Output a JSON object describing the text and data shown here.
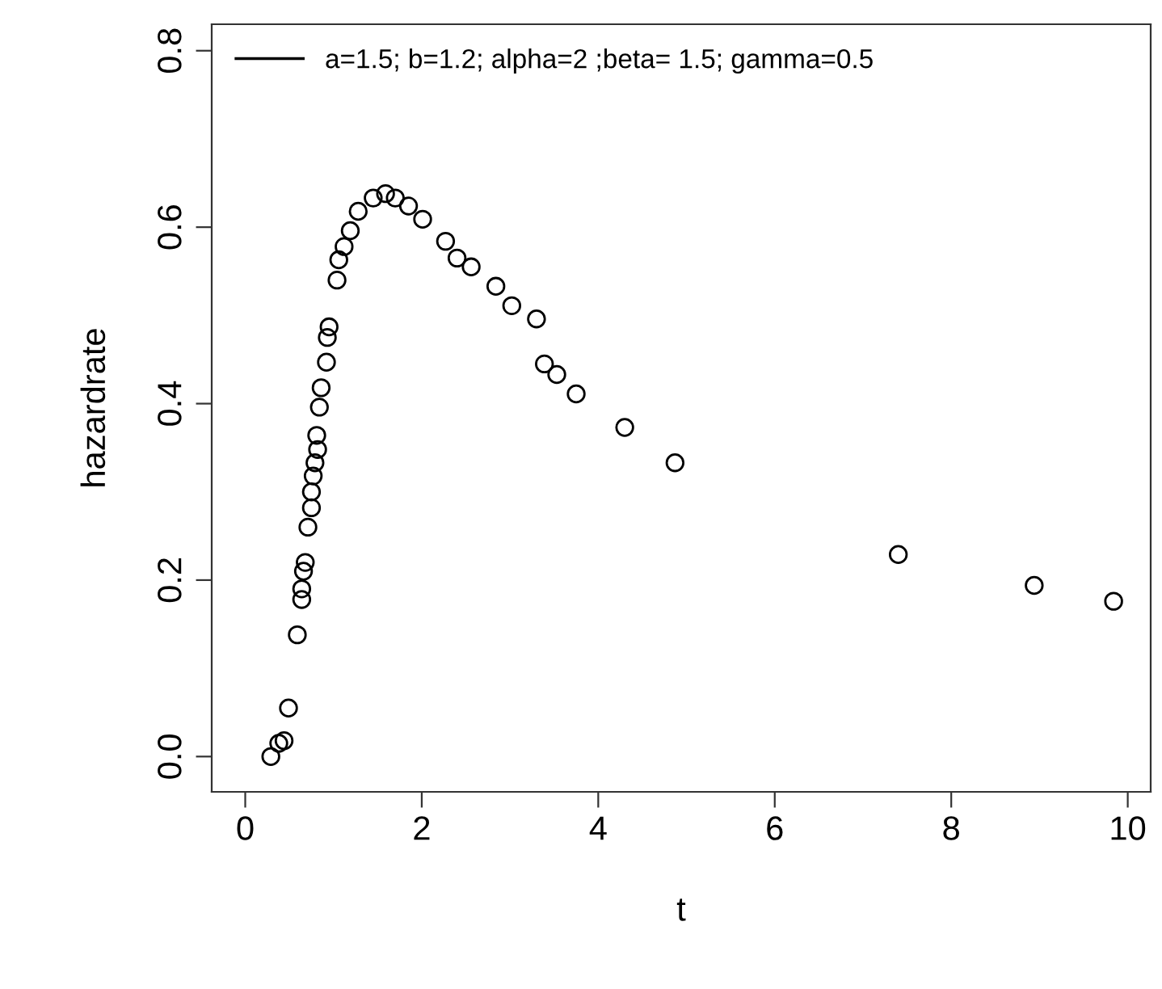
{
  "chart_data": {
    "type": "scatter",
    "xlabel": "t",
    "ylabel": "hazardrate",
    "xlim": [
      -0.38,
      10.26
    ],
    "ylim": [
      -0.04,
      0.83
    ],
    "xticks": [
      0,
      2,
      4,
      6,
      8,
      10
    ],
    "yticks": [
      {
        "value": 0,
        "label": "0.0"
      },
      0.2,
      0.4,
      0.6,
      0.8
    ],
    "marker": "circle",
    "grid": false,
    "legend": "top left",
    "series": [
      {
        "name": "a=1.5; b=1.2; alpha=2 ;beta= 1.5; gamma=0.5",
        "color": "#000000",
        "x": [
          0.29,
          0.38,
          0.44,
          0.49,
          0.59,
          0.64,
          0.64,
          0.66,
          0.68,
          0.71,
          0.75,
          0.75,
          0.77,
          0.79,
          0.82,
          0.81,
          0.84,
          0.86,
          0.92,
          0.93,
          0.95,
          1.04,
          1.06,
          1.12,
          1.19,
          1.28,
          1.45,
          1.59,
          1.7,
          1.85,
          2.01,
          2.27,
          2.4,
          2.56,
          2.84,
          3.02,
          3.3,
          3.39,
          3.53,
          3.75,
          4.3,
          4.87,
          7.4,
          8.94,
          9.84
        ],
        "values": [
          0.0,
          0.015,
          0.018,
          0.055,
          0.138,
          0.178,
          0.19,
          0.21,
          0.22,
          0.26,
          0.282,
          0.3,
          0.318,
          0.333,
          0.348,
          0.364,
          0.396,
          0.418,
          0.447,
          0.475,
          0.487,
          0.54,
          0.563,
          0.578,
          0.596,
          0.618,
          0.633,
          0.638,
          0.633,
          0.624,
          0.609,
          0.584,
          0.565,
          0.555,
          0.533,
          0.511,
          0.496,
          0.445,
          0.433,
          0.411,
          0.373,
          0.333,
          0.229,
          0.194,
          0.176
        ]
      }
    ]
  }
}
